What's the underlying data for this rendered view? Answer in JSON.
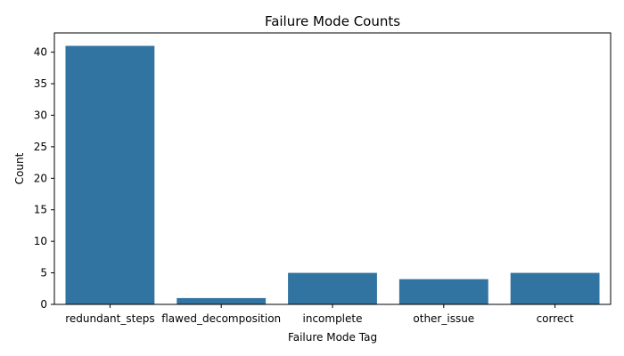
{
  "chart_data": {
    "type": "bar",
    "title": "Failure Mode Counts",
    "xlabel": "Failure Mode Tag",
    "ylabel": "Count",
    "categories": [
      "redundant_steps",
      "flawed_decomposition",
      "incomplete",
      "other_issue",
      "correct"
    ],
    "values": [
      41,
      1,
      5,
      4,
      5
    ],
    "ylim": [
      0,
      43.05
    ],
    "yticks": [
      0,
      5,
      10,
      15,
      20,
      25,
      30,
      35,
      40
    ],
    "bar_color": "#3274a1",
    "grid": false,
    "legend": "none"
  }
}
